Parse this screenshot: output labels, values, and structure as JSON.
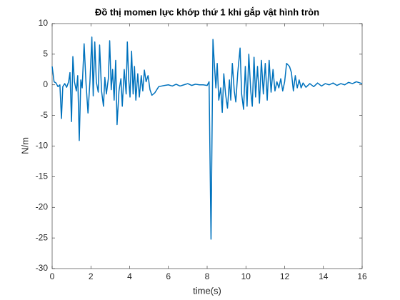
{
  "chart_data": {
    "type": "line",
    "title": "Đồ thị momen lực khớp thứ 1 khi gắp vật hình tròn",
    "xlabel": "time(s)",
    "ylabel": "N/m",
    "xlim": [
      0,
      16
    ],
    "ylim": [
      -30,
      10
    ],
    "xticks": [
      0,
      2,
      4,
      6,
      8,
      10,
      12,
      14,
      16
    ],
    "yticks": [
      -30,
      -25,
      -20,
      -15,
      -10,
      -5,
      0,
      5,
      10
    ],
    "grid": false,
    "x": [
      0,
      0.1,
      0.2,
      0.3,
      0.4,
      0.48,
      0.55,
      0.65,
      0.75,
      0.85,
      0.92,
      1.0,
      1.07,
      1.15,
      1.25,
      1.32,
      1.4,
      1.48,
      1.55,
      1.65,
      1.75,
      1.85,
      1.95,
      2.05,
      2.12,
      2.2,
      2.28,
      2.38,
      2.45,
      2.55,
      2.65,
      2.72,
      2.8,
      2.9,
      2.97,
      3.05,
      3.12,
      3.2,
      3.28,
      3.35,
      3.45,
      3.55,
      3.62,
      3.72,
      3.82,
      3.88,
      3.95,
      4.02,
      4.1,
      4.18,
      4.25,
      4.32,
      4.42,
      4.5,
      4.6,
      4.68,
      4.76,
      4.85,
      4.95,
      5.05,
      5.15,
      5.3,
      5.5,
      5.8,
      6.0,
      6.2,
      6.4,
      6.6,
      6.8,
      7.0,
      7.2,
      7.4,
      7.6,
      7.8,
      8.0,
      8.1,
      8.2,
      8.3,
      8.38,
      8.45,
      8.52,
      8.6,
      8.7,
      8.78,
      8.86,
      8.95,
      9.05,
      9.15,
      9.22,
      9.3,
      9.4,
      9.48,
      9.58,
      9.7,
      9.78,
      9.88,
      9.97,
      10.06,
      10.15,
      10.25,
      10.33,
      10.42,
      10.5,
      10.6,
      10.7,
      10.8,
      10.9,
      11.0,
      11.1,
      11.2,
      11.3,
      11.4,
      11.5,
      11.6,
      11.7,
      11.8,
      11.9,
      12.0,
      12.1,
      12.25,
      12.35,
      12.45,
      12.55,
      12.65,
      12.75,
      12.85,
      12.95,
      13.1,
      13.3,
      13.5,
      13.7,
      13.9,
      14.1,
      14.3,
      14.5,
      14.7,
      14.9,
      15.1,
      15.3,
      15.5,
      15.7,
      15.9,
      16
    ],
    "series": [
      {
        "color": "#0072bd",
        "values": [
          3.0,
          0.5,
          0.3,
          -0.3,
          0.0,
          -5.5,
          -0.3,
          0.2,
          -0.4,
          0.5,
          2.0,
          -6.0,
          4.6,
          0.5,
          -1.0,
          1.5,
          -9.1,
          0.8,
          -0.5,
          6.7,
          0.2,
          -4.6,
          0.5,
          7.8,
          -1.8,
          7.0,
          0.5,
          -1.2,
          6.5,
          -1.0,
          -3.5,
          1.2,
          -1.5,
          1.0,
          7.2,
          -0.8,
          2.5,
          -2.5,
          4.0,
          -6.5,
          -1.0,
          1.0,
          -3.5,
          2.5,
          -1.5,
          7.0,
          1.0,
          -2.0,
          5.5,
          -1.5,
          3.0,
          -2.5,
          1.8,
          -2.0,
          1.5,
          -1.0,
          2.4,
          0.5,
          1.5,
          -0.8,
          -1.7,
          -1.3,
          -0.3,
          -0.1,
          0.0,
          -0.2,
          0.1,
          -0.2,
          0.0,
          0.2,
          -0.1,
          0.1,
          0.0,
          0.0,
          -0.1,
          0.5,
          -25.2,
          7.4,
          3.0,
          -0.5,
          3.5,
          -2.5,
          -0.5,
          -4.5,
          1.8,
          -1.5,
          -3.8,
          0.8,
          -2.5,
          3.5,
          -1.0,
          -2.8,
          2.0,
          6.0,
          -1.5,
          -4.0,
          3.0,
          -3.5,
          5.0,
          -1.0,
          -3.5,
          4.5,
          -2.0,
          3.0,
          -3.0,
          4.0,
          -1.5,
          3.5,
          -2.5,
          4.0,
          -1.2,
          2.5,
          -1.0,
          0.5,
          -0.5,
          1.0,
          -1.0,
          0.5,
          3.5,
          3.0,
          2.0,
          -1.0,
          1.5,
          -0.5,
          0.8,
          -0.5,
          0.3,
          -0.4,
          0.2,
          -0.3,
          0.3,
          -0.2,
          0.2,
          0.0,
          0.3,
          -0.1,
          0.2,
          0.0,
          0.4,
          0.2,
          0.5,
          0.3,
          0.2
        ]
      }
    ]
  }
}
